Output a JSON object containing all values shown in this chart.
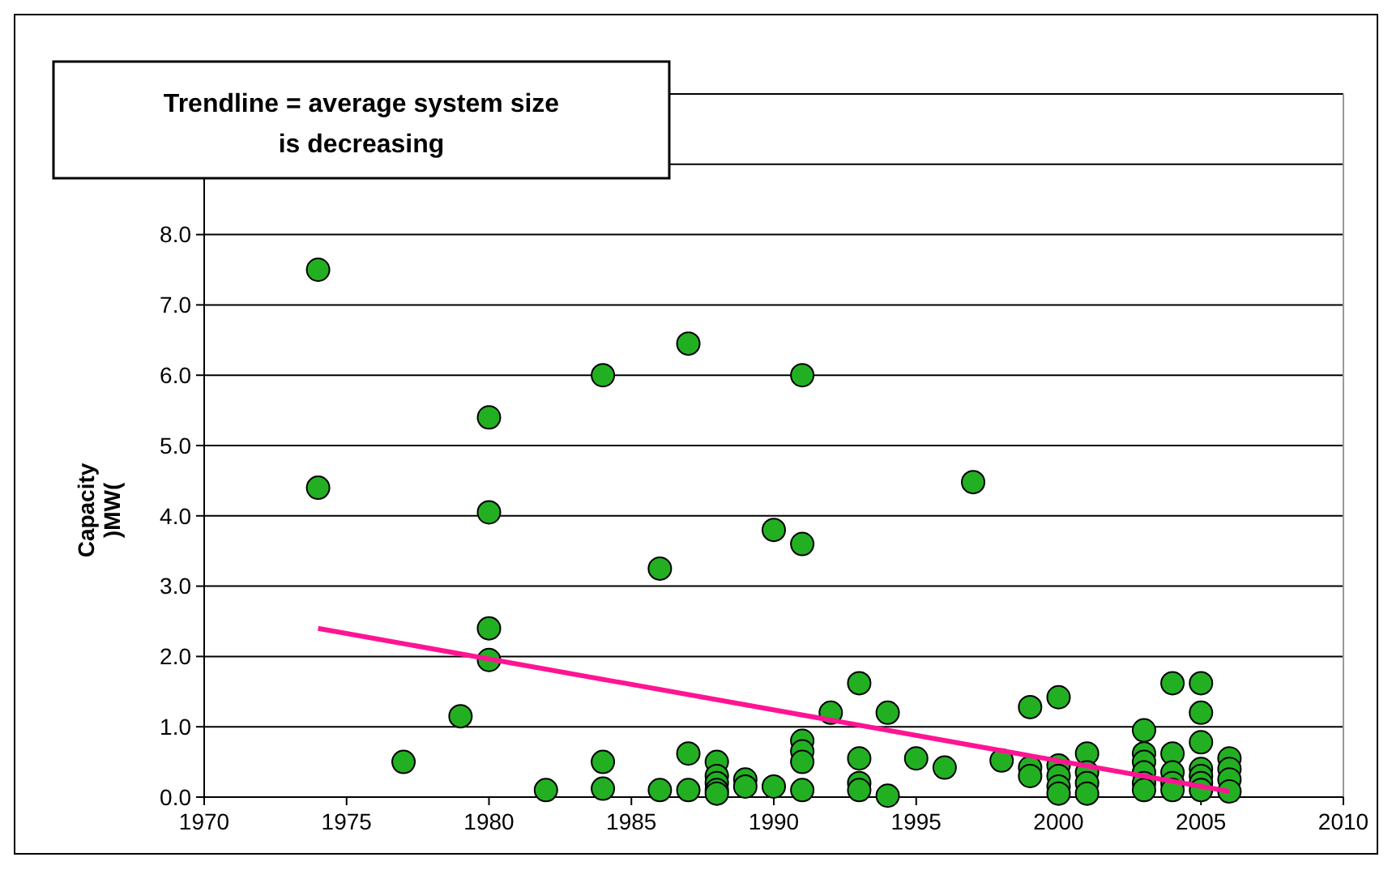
{
  "chart_data": {
    "type": "scatter",
    "ylabel": "Capacity )MW(",
    "annotations": [
      "Trendline = average system size is decreasing"
    ],
    "xlim": [
      1970,
      2010
    ],
    "xticks": [
      1970,
      1975,
      1980,
      1985,
      1990,
      1995,
      2000,
      2005,
      2010
    ],
    "ylim": [
      0,
      10
    ],
    "yticks": [
      {
        "value": 0,
        "label": "0.0"
      },
      {
        "value": 1,
        "label": "1.0"
      },
      {
        "value": 2,
        "label": "2.0"
      },
      {
        "value": 3,
        "label": "3.0"
      },
      {
        "value": 4,
        "label": "4.0"
      },
      {
        "value": 5,
        "label": "5.0"
      },
      {
        "value": 6,
        "label": "6.0"
      },
      {
        "value": 7,
        "label": "7.0"
      },
      {
        "value": 8,
        "label": "8.0"
      },
      {
        "value": 9,
        "label": null
      },
      {
        "value": 10,
        "label": null
      }
    ],
    "grid": "y",
    "marker": "circle",
    "series": [
      {
        "color": "#22b022",
        "x": [
          1974,
          1974,
          1977,
          1979,
          1980,
          1980,
          1980,
          1980,
          1982,
          1984,
          1984,
          1984,
          1986,
          1986,
          1987,
          1987,
          1987,
          1988,
          1988,
          1988,
          1988,
          1988,
          1989,
          1989,
          1990,
          1990,
          1991,
          1991,
          1991,
          1991,
          1991,
          1991,
          1992,
          1993,
          1993,
          1993,
          1993,
          1994,
          1994,
          1995,
          1996,
          1997,
          1998,
          1999,
          1999,
          1999,
          2000,
          2000,
          2000,
          2000,
          2000,
          2001,
          2001,
          2001,
          2001,
          2003,
          2003,
          2003,
          2003,
          2003,
          2003,
          2004,
          2004,
          2004,
          2004,
          2004,
          2005,
          2005,
          2005,
          2005,
          2005,
          2005,
          2005,
          2006,
          2006,
          2006,
          2006
        ],
        "values": [
          7.5,
          4.4,
          0.5,
          1.15,
          5.4,
          4.05,
          2.4,
          1.95,
          0.1,
          6.0,
          0.5,
          0.12,
          3.25,
          0.1,
          6.45,
          0.62,
          0.1,
          0.5,
          0.3,
          0.2,
          0.1,
          0.05,
          0.25,
          0.15,
          3.8,
          0.15,
          6.0,
          3.6,
          0.8,
          0.65,
          0.5,
          0.1,
          1.2,
          1.62,
          0.55,
          0.2,
          0.1,
          1.2,
          0.02,
          0.55,
          0.42,
          4.48,
          0.52,
          1.28,
          0.42,
          0.3,
          1.42,
          0.45,
          0.3,
          0.15,
          0.05,
          0.62,
          0.35,
          0.2,
          0.05,
          0.95,
          0.62,
          0.5,
          0.35,
          0.2,
          0.1,
          1.62,
          0.62,
          0.35,
          0.2,
          0.1,
          1.62,
          1.2,
          0.78,
          0.4,
          0.3,
          0.2,
          0.1,
          0.55,
          0.4,
          0.25,
          0.08
        ]
      },
      {
        "type": "line",
        "color": "#ff1493",
        "x": [
          1974,
          2006
        ],
        "values": [
          2.4,
          0.08
        ],
        "marker": "none"
      }
    ]
  }
}
